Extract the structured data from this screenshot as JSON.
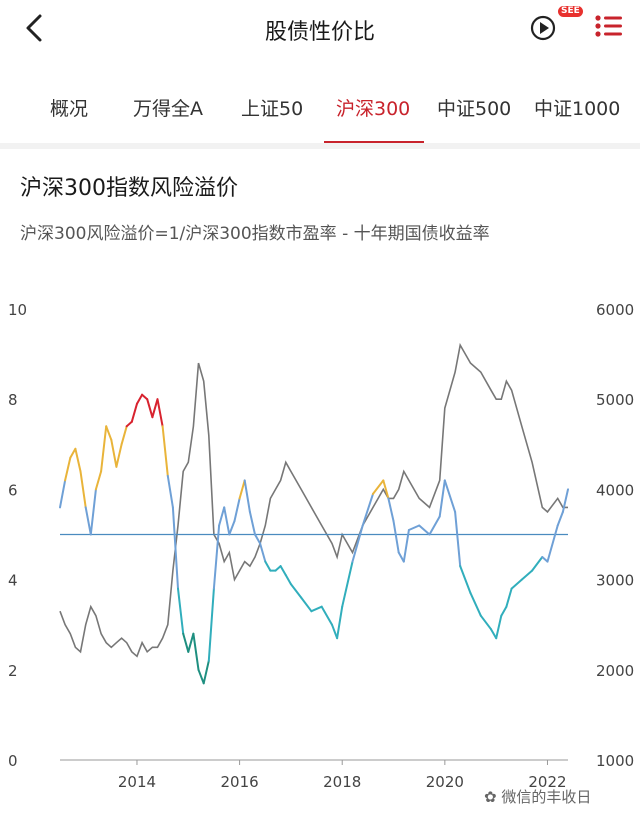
{
  "header": {
    "title": "股债性价比",
    "badge": "SEE",
    "back_icon": "back-arrow-icon",
    "play_icon": "play-circle-icon",
    "more_icon": "more-icon"
  },
  "tabs": [
    {
      "label": "概况",
      "active": false
    },
    {
      "label": "万得全A",
      "active": false
    },
    {
      "label": "上证50",
      "active": false
    },
    {
      "label": "沪深300",
      "active": true
    },
    {
      "label": "中证500",
      "active": false
    },
    {
      "label": "中证1000",
      "active": false
    }
  ],
  "colors": {
    "accent": "#c8232c",
    "index_line": "#777777",
    "premium_mid": "#6fa0d6",
    "premium_high": "#e9b43a",
    "premium_very_high": "#d8232f",
    "premium_low": "#31aebc",
    "premium_very_low": "#1e8f80",
    "mean_line": "#4a8bbf"
  },
  "chart": {
    "title": "沪深300指数风险溢价",
    "subtitle": "沪深300风险溢价=1/沪深300指数市盈率 - 十年期国债收益率",
    "watermark_text": "微信的丰收日",
    "chart_data": {
      "type": "line",
      "x_ticks": [
        "2014",
        "2016",
        "2018",
        "2020",
        "2022"
      ],
      "x_range": [
        2012.5,
        2022.4
      ],
      "y_left_ticks": [
        "0",
        "2",
        "4",
        "6",
        "8",
        "10"
      ],
      "y_left_range": [
        0,
        10
      ],
      "y_right_ticks": [
        "1000",
        "2000",
        "3000",
        "4000",
        "5000",
        "6000"
      ],
      "y_right_range": [
        1000,
        6000
      ],
      "mean_line_value": 5.0,
      "series": [
        {
          "axis": "left",
          "x": [
            2012.5,
            2012.6,
            2012.7,
            2012.8,
            2012.9,
            2013.0,
            2013.1,
            2013.2,
            2013.3,
            2013.4,
            2013.5,
            2013.6,
            2013.7,
            2013.8,
            2013.9,
            2014.0,
            2014.1,
            2014.2,
            2014.3,
            2014.4,
            2014.5,
            2014.6,
            2014.7,
            2014.8,
            2014.9,
            2015.0,
            2015.1,
            2015.2,
            2015.3,
            2015.4,
            2015.5,
            2015.6,
            2015.7,
            2015.8,
            2015.9,
            2016.0,
            2016.1,
            2016.2,
            2016.3,
            2016.4,
            2016.5,
            2016.6,
            2016.7,
            2016.8,
            2016.9,
            2017.0,
            2017.2,
            2017.4,
            2017.6,
            2017.8,
            2017.9,
            2018.0,
            2018.2,
            2018.4,
            2018.6,
            2018.8,
            2018.9,
            2019.0,
            2019.1,
            2019.2,
            2019.3,
            2019.5,
            2019.7,
            2019.9,
            2020.0,
            2020.2,
            2020.3,
            2020.5,
            2020.7,
            2020.9,
            2021.0,
            2021.1,
            2021.2,
            2021.3,
            2021.5,
            2021.7,
            2021.9,
            2022.0,
            2022.2,
            2022.3,
            2022.4
          ],
          "y": [
            5.6,
            6.2,
            6.7,
            6.9,
            6.4,
            5.6,
            5.0,
            6.0,
            6.4,
            7.4,
            7.1,
            6.5,
            7.0,
            7.4,
            7.5,
            7.9,
            8.1,
            8.0,
            7.6,
            8.0,
            7.4,
            6.3,
            5.6,
            3.8,
            2.8,
            2.4,
            2.8,
            2.0,
            1.7,
            2.2,
            3.8,
            5.2,
            5.6,
            5.0,
            5.3,
            5.8,
            6.2,
            5.5,
            5.0,
            4.8,
            4.4,
            4.2,
            4.2,
            4.3,
            4.1,
            3.9,
            3.6,
            3.3,
            3.4,
            3.0,
            2.7,
            3.4,
            4.4,
            5.2,
            5.9,
            6.2,
            5.8,
            5.3,
            4.6,
            4.4,
            5.1,
            5.2,
            5.0,
            5.4,
            6.2,
            5.5,
            4.3,
            3.7,
            3.2,
            2.9,
            2.7,
            3.2,
            3.4,
            3.8,
            4.0,
            4.2,
            4.5,
            4.4,
            5.2,
            5.5,
            6.0
          ]
        },
        {
          "axis": "right",
          "x": [
            2012.5,
            2012.6,
            2012.7,
            2012.8,
            2012.9,
            2013.0,
            2013.1,
            2013.2,
            2013.3,
            2013.4,
            2013.5,
            2013.6,
            2013.7,
            2013.8,
            2013.9,
            2014.0,
            2014.1,
            2014.2,
            2014.3,
            2014.4,
            2014.5,
            2014.6,
            2014.7,
            2014.8,
            2014.9,
            2015.0,
            2015.1,
            2015.2,
            2015.3,
            2015.4,
            2015.5,
            2015.6,
            2015.7,
            2015.8,
            2015.9,
            2016.0,
            2016.1,
            2016.2,
            2016.3,
            2016.4,
            2016.5,
            2016.6,
            2016.7,
            2016.8,
            2016.9,
            2017.0,
            2017.2,
            2017.4,
            2017.6,
            2017.8,
            2017.9,
            2018.0,
            2018.2,
            2018.4,
            2018.6,
            2018.8,
            2018.9,
            2019.0,
            2019.1,
            2019.2,
            2019.3,
            2019.5,
            2019.7,
            2019.9,
            2020.0,
            2020.2,
            2020.3,
            2020.5,
            2020.7,
            2020.9,
            2021.0,
            2021.1,
            2021.2,
            2021.3,
            2021.5,
            2021.7,
            2021.9,
            2022.0,
            2022.2,
            2022.3,
            2022.4
          ],
          "y": [
            2650,
            2500,
            2400,
            2250,
            2200,
            2500,
            2700,
            2600,
            2400,
            2300,
            2250,
            2300,
            2350,
            2300,
            2200,
            2150,
            2300,
            2200,
            2250,
            2250,
            2350,
            2500,
            3100,
            3600,
            4200,
            4300,
            4700,
            5400,
            5200,
            4600,
            3500,
            3400,
            3200,
            3300,
            3000,
            3100,
            3200,
            3150,
            3250,
            3400,
            3600,
            3900,
            4000,
            4100,
            4300,
            4200,
            4000,
            3800,
            3600,
            3400,
            3250,
            3500,
            3300,
            3600,
            3800,
            4000,
            3900,
            3900,
            4000,
            4200,
            4100,
            3900,
            3800,
            4100,
            4900,
            5300,
            5600,
            5400,
            5300,
            5100,
            5000,
            5000,
            5200,
            5100,
            4700,
            4300,
            3800,
            3750,
            3900,
            3800,
            3800
          ]
        }
      ]
    }
  }
}
